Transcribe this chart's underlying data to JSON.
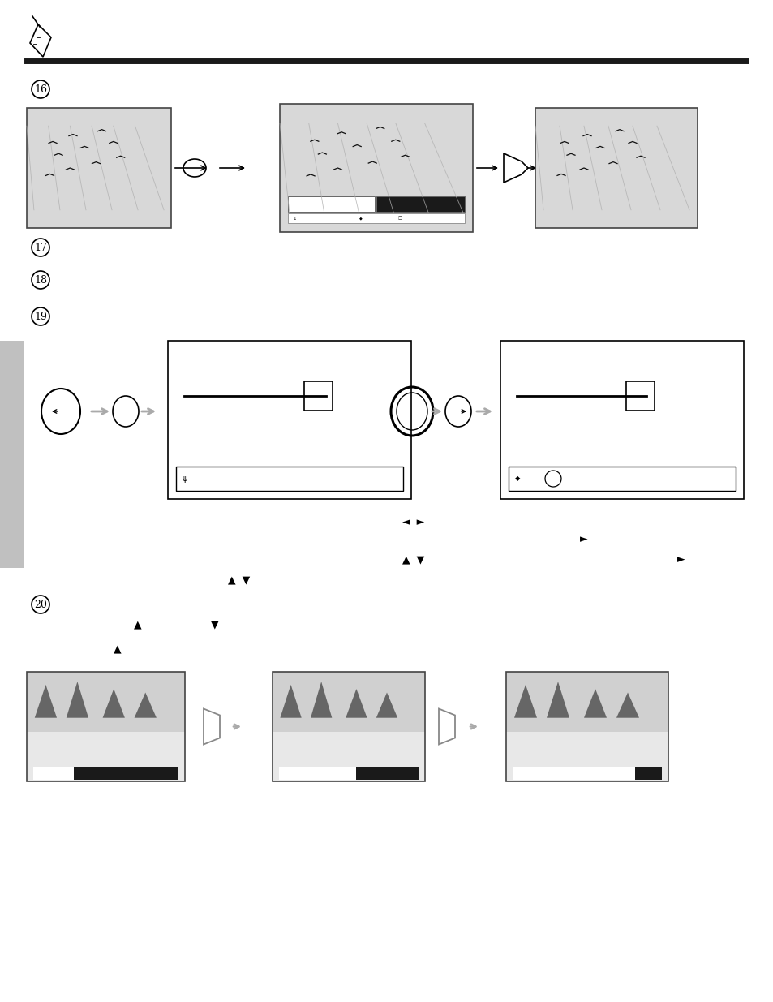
{
  "bg_color": "#ffffff",
  "page_width": 9.54,
  "page_height": 12.35,
  "dpi": 100
}
